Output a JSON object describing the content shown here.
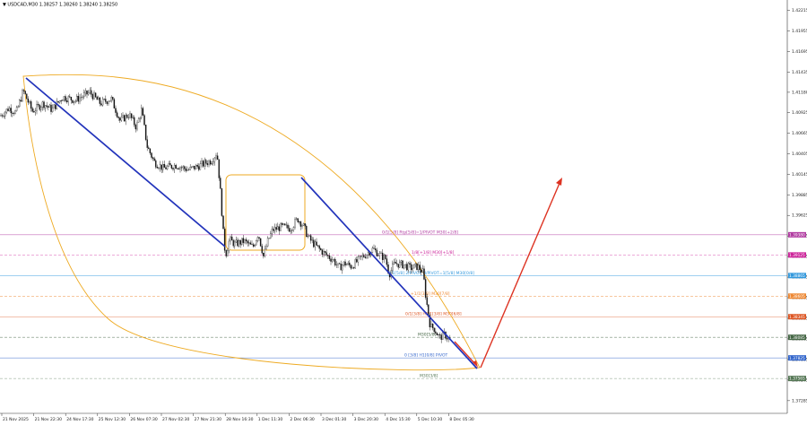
{
  "header": {
    "symbol_text": "▼ USDCAD,M30  1.38257 1.38260 1.38240 1.38250"
  },
  "chart_data": {
    "type": "candlestick",
    "symbol": "USDCAD",
    "timeframe": "M30",
    "ohlc": {
      "open": 1.38257,
      "high": 1.3826,
      "low": 1.3824,
      "close": 1.3825
    },
    "y_ticks": [
      "1.42215",
      "1.41955",
      "1.41695",
      "1.41435",
      "1.41180",
      "1.40925",
      "1.40665",
      "1.40405",
      "1.40145",
      "1.39885",
      "1.39625",
      "1.39365",
      "1.39105",
      "1.38845",
      "1.38585",
      "1.38325",
      "1.38065",
      "1.37805",
      "1.37545",
      "1.37285"
    ],
    "ylim": [
      1.3717,
      1.423
    ],
    "x_ticks": [
      "21 Nov 2025",
      "21 Nov 22:30",
      "24 Nov 17:30",
      "25 Nov 12:30",
      "26 Nov 07:30",
      "27 Nov 02:30",
      "27 Nov 21:30",
      "28 Nov 16:30",
      "1 Dec 11:30",
      "2 Dec 06:30",
      "3 Dec 01:30",
      "3 Dec 20:30",
      "4 Dec 15:30",
      "5 Dec 10:30",
      "8 Dec 05:30"
    ],
    "price_path": [
      [
        0,
        1.4088
      ],
      [
        10,
        1.4098
      ],
      [
        18,
        1.4092
      ],
      [
        26,
        1.412
      ],
      [
        36,
        1.4094
      ],
      [
        48,
        1.4104
      ],
      [
        58,
        1.4096
      ],
      [
        70,
        1.4112
      ],
      [
        84,
        1.4108
      ],
      [
        100,
        1.4118
      ],
      [
        112,
        1.4104
      ],
      [
        124,
        1.411
      ],
      [
        134,
        1.4082
      ],
      [
        144,
        1.409
      ],
      [
        152,
        1.4074
      ],
      [
        158,
        1.4096
      ],
      [
        164,
        1.405
      ],
      [
        172,
        1.403
      ],
      [
        182,
        1.4022
      ],
      [
        196,
        1.4026
      ],
      [
        210,
        1.402
      ],
      [
        224,
        1.4026
      ],
      [
        236,
        1.4032
      ],
      [
        242,
        1.4042
      ],
      [
        246,
        1.399
      ],
      [
        250,
        1.3924
      ],
      [
        252,
        1.3914
      ],
      [
        256,
        1.3932
      ],
      [
        262,
        1.3926
      ],
      [
        272,
        1.393
      ],
      [
        282,
        1.3922
      ],
      [
        288,
        1.394
      ],
      [
        294,
        1.391
      ],
      [
        298,
        1.3928
      ],
      [
        304,
        1.3944
      ],
      [
        314,
        1.3948
      ],
      [
        324,
        1.3946
      ],
      [
        332,
        1.3958
      ],
      [
        338,
        1.395
      ],
      [
        344,
        1.3934
      ],
      [
        352,
        1.3924
      ],
      [
        362,
        1.3914
      ],
      [
        372,
        1.3906
      ],
      [
        378,
        1.3896
      ],
      [
        384,
        1.3902
      ],
      [
        392,
        1.3898
      ],
      [
        404,
        1.391
      ],
      [
        416,
        1.392
      ],
      [
        424,
        1.3912
      ],
      [
        430,
        1.3908
      ],
      [
        434,
        1.3888
      ],
      [
        440,
        1.3902
      ],
      [
        450,
        1.39
      ],
      [
        458,
        1.3896
      ],
      [
        466,
        1.3898
      ],
      [
        472,
        1.389
      ],
      [
        475,
        1.3858
      ],
      [
        478,
        1.3836
      ],
      [
        480,
        1.3822
      ],
      [
        484,
        1.382
      ],
      [
        490,
        1.3808
      ],
      [
        496,
        1.3812
      ],
      [
        502,
        1.3804
      ]
    ],
    "levels": [
      {
        "label": "0/1[5/8] Rtp[5/8]=1/PIVOT M30[+2/8]",
        "price": 1.3938,
        "tag": "1.39380",
        "color": "#b03aa0",
        "style": "solid"
      },
      {
        "label": "1/8[+1/8] M30[+1/8]",
        "price": 1.39125,
        "tag": "1.39125",
        "color": "#cc2299",
        "style": "dash"
      },
      {
        "label": "0/1[5/8] 2/PIVOT H/PIVOT=1[5/8] M30[0/8]",
        "price": 1.38865,
        "tag": "1.38865",
        "color": "#3399dd",
        "style": "solid"
      },
      {
        "label": "+1/1[3/8] M30[7/8]",
        "price": 1.38605,
        "tag": "1.38605",
        "color": "#ee8833",
        "style": "dash"
      },
      {
        "label": "0/1[3/8] H1/1[3/8] M30[6/8]",
        "price": 1.38345,
        "tag": "1.38345",
        "color": "#dd5522",
        "style": "solid"
      },
      {
        "label": "M30[5/8]",
        "price": 1.38085,
        "tag": "1.38085",
        "color": "#446644",
        "style": "dash"
      },
      {
        "label": "0 [3/8] H1[0/8] PIVOT",
        "price": 1.37825,
        "tag": "1.37825",
        "color": "#3366cc",
        "style": "solid"
      },
      {
        "label": "M30[3/8]",
        "price": 1.37565,
        "tag": "1.37565",
        "color": "#557755",
        "style": "dash"
      }
    ],
    "grid": false
  },
  "colors": {
    "candles": "#111111",
    "trendline": "#2233bb",
    "arc": "#eeaa22",
    "forecast": "#dd3322",
    "axis": "#333333"
  }
}
